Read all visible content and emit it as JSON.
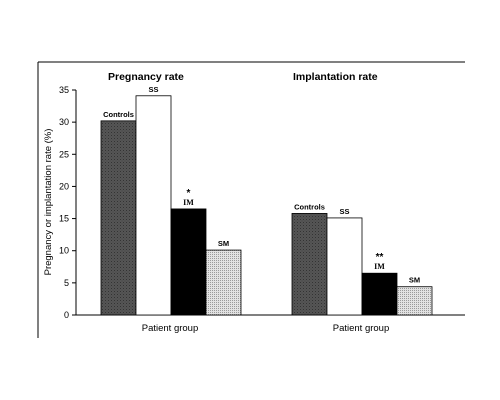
{
  "chart_data": {
    "type": "bar",
    "ylabel": "Pregnancy or implantation rate (%)",
    "ylim": [
      0,
      35
    ],
    "yticks": [
      0,
      5,
      10,
      15,
      20,
      25,
      30,
      35
    ],
    "grid": false,
    "legend": "none",
    "panels": [
      {
        "title": "Pregnancy rate",
        "xlabel": "Patient group",
        "categories": [
          "Controls",
          "SS",
          "IM",
          "SM"
        ],
        "values": [
          30.2,
          34.1,
          16.5,
          10.1
        ],
        "significance": [
          "",
          "",
          "*",
          ""
        ]
      },
      {
        "title": "Implantation rate",
        "xlabel": "Patient group",
        "categories": [
          "Controls",
          "SS",
          "IM",
          "SM"
        ],
        "values": [
          15.8,
          15.1,
          6.5,
          4.4
        ],
        "significance": [
          "",
          "",
          "**",
          ""
        ]
      }
    ],
    "bar_fills": [
      "dark-gray-hatch",
      "white",
      "black",
      "light-gray-dots"
    ]
  }
}
